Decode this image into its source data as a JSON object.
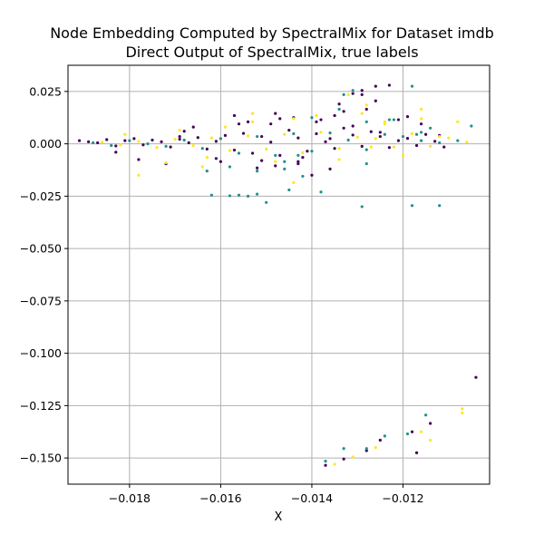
{
  "chart_data": {
    "type": "scatter",
    "title": "Node Embedding Computed by SpectralMix for Dataset imdb",
    "subtitle": "Direct Output of SpectralMix, true labels",
    "xlabel": "X",
    "ylabel": "",
    "xlim": [
      -0.01935,
      -0.0101
    ],
    "ylim": [
      -0.1625,
      0.0375
    ],
    "x_ticks": [
      -0.018,
      -0.016,
      -0.014,
      -0.012
    ],
    "x_tick_labels": [
      "−0.018",
      "−0.016",
      "−0.014",
      "−0.012"
    ],
    "y_ticks": [
      0.025,
      0.0,
      -0.025,
      -0.05,
      -0.075,
      -0.1,
      -0.125,
      -0.15
    ],
    "y_tick_labels": [
      "0.025",
      "0.000",
      "−0.025",
      "−0.050",
      "−0.075",
      "−0.100",
      "−0.125",
      "−0.150"
    ],
    "grid": true,
    "point_size": "small",
    "colors": {
      "class_0": "#440154",
      "class_1": "#21918c",
      "class_2": "#fde725",
      "grid": "#b0b0b0"
    },
    "series": [
      {
        "color": "#440154",
        "x": [
          -0.0191,
          -0.0189,
          -0.0187,
          -0.0185,
          -0.0183,
          -0.0181,
          -0.0179,
          -0.0177,
          -0.0175,
          -0.0173,
          -0.0171,
          -0.0169,
          -0.0167,
          -0.0165,
          -0.0163,
          -0.0161,
          -0.0159,
          -0.0157,
          -0.0155,
          -0.0153,
          -0.0151,
          -0.0149,
          -0.0147,
          -0.0145,
          -0.0143,
          -0.0141,
          -0.0139,
          -0.0137,
          -0.0135,
          -0.0133,
          -0.0131,
          -0.0129,
          -0.0127,
          -0.0125,
          -0.0123,
          -0.0121,
          -0.0119,
          -0.0117,
          -0.0115,
          -0.0113,
          -0.0111,
          -0.0168,
          -0.0161,
          -0.0156,
          -0.0151,
          -0.0147,
          -0.0143,
          -0.0139,
          -0.0135,
          -0.0131,
          -0.0128,
          -0.0125,
          -0.0157,
          -0.0152,
          -0.0148,
          -0.0143,
          -0.0138,
          -0.0133,
          -0.0129,
          -0.0126,
          -0.0134,
          -0.0131,
          -0.0129,
          -0.0126,
          -0.0123,
          -0.0121,
          -0.0119,
          -0.0116,
          -0.0112,
          -0.0104,
          -0.0117,
          -0.0118,
          -0.0114,
          -0.0178,
          -0.0172,
          -0.0166,
          -0.016,
          -0.0154,
          -0.0148,
          -0.0142,
          -0.0136,
          -0.0183,
          -0.0169,
          -0.0149,
          -0.0144,
          -0.014,
          -0.0137,
          -0.0133,
          -0.0128,
          -0.0125,
          -0.0136
        ],
        "y": [
          0.0015,
          0.001,
          0.0005,
          0.002,
          -0.001,
          0.0015,
          0.0025,
          -0.0005,
          0.0018,
          0.001,
          -0.0015,
          0.0022,
          0.0005,
          0.003,
          -0.0025,
          0.0012,
          0.004,
          -0.003,
          0.005,
          -0.0045,
          0.0035,
          0.0008,
          -0.0055,
          0.0065,
          0.0028,
          -0.0035,
          0.0048,
          0.001,
          -0.0022,
          0.0075,
          0.0042,
          -0.0012,
          0.0058,
          0.0035,
          -0.0018,
          0.0015,
          0.0026,
          -0.0008,
          0.0045,
          0.0012,
          -0.0015,
          0.006,
          -0.007,
          0.0095,
          -0.008,
          0.012,
          -0.0085,
          0.0105,
          0.0135,
          0.0085,
          0.0165,
          0.0055,
          0.0135,
          -0.0115,
          0.0145,
          -0.0095,
          0.0115,
          0.0155,
          0.0235,
          0.0275,
          0.019,
          0.024,
          0.0255,
          0.0205,
          0.028,
          0.0115,
          0.013,
          0.0095,
          0.004,
          -0.1115,
          -0.1475,
          -0.1375,
          -0.1335,
          -0.0075,
          -0.0095,
          0.008,
          -0.0085,
          0.0105,
          -0.0105,
          -0.0065,
          -0.012,
          -0.004,
          0.0035,
          0.0095,
          0.0125,
          -0.015,
          -0.1535,
          -0.1505,
          -0.1465,
          -0.1415,
          0.0025
        ]
      },
      {
        "color": "#21918c",
        "x": [
          -0.0188,
          -0.0184,
          -0.018,
          -0.0176,
          -0.0172,
          -0.0168,
          -0.0164,
          -0.016,
          -0.0156,
          -0.0152,
          -0.0148,
          -0.0144,
          -0.014,
          -0.0136,
          -0.0132,
          -0.0128,
          -0.0124,
          -0.012,
          -0.0116,
          -0.0112,
          -0.0162,
          -0.0158,
          -0.0156,
          -0.0154,
          -0.0152,
          -0.015,
          -0.0145,
          -0.0142,
          -0.0138,
          -0.0129,
          -0.0118,
          -0.0112,
          -0.0158,
          -0.0152,
          -0.0146,
          -0.014,
          -0.0134,
          -0.0128,
          -0.0122,
          -0.0116,
          -0.0117,
          -0.0133,
          -0.0131,
          -0.0128,
          -0.0123,
          -0.0118,
          -0.0114,
          -0.0108,
          -0.0105,
          -0.0137,
          -0.0133,
          -0.0128,
          -0.0124,
          -0.0119,
          -0.0115,
          -0.0163,
          -0.0146,
          -0.0143
        ],
        "y": [
          0.0005,
          -0.0008,
          0.0015,
          0.0,
          -0.0012,
          0.0018,
          -0.0022,
          0.0025,
          -0.0045,
          0.0035,
          -0.0055,
          0.0048,
          -0.0035,
          0.0052,
          0.0018,
          -0.0028,
          0.0045,
          0.0035,
          0.0015,
          0.0005,
          -0.0245,
          -0.0248,
          -0.0245,
          -0.025,
          -0.024,
          -0.028,
          -0.022,
          -0.0155,
          -0.023,
          -0.03,
          -0.0295,
          -0.0295,
          -0.011,
          -0.013,
          -0.0085,
          0.0125,
          0.0165,
          -0.0095,
          0.0115,
          0.0055,
          0.0045,
          0.0235,
          0.0255,
          0.0105,
          0.0115,
          0.0275,
          0.0075,
          0.0015,
          0.0085,
          -0.1515,
          -0.1455,
          -0.1455,
          -0.1395,
          -0.1385,
          -0.1295,
          -0.013,
          -0.012,
          -0.0055
        ]
      },
      {
        "color": "#fde725",
        "x": [
          -0.0186,
          -0.0182,
          -0.0178,
          -0.0174,
          -0.017,
          -0.0166,
          -0.0162,
          -0.0158,
          -0.0154,
          -0.015,
          -0.0146,
          -0.0142,
          -0.0138,
          -0.0134,
          -0.013,
          -0.0126,
          -0.0122,
          -0.0118,
          -0.0114,
          -0.011,
          -0.0106,
          -0.0178,
          -0.0172,
          -0.0169,
          -0.0164,
          -0.0159,
          -0.0153,
          -0.0148,
          -0.0144,
          -0.0139,
          -0.0134,
          -0.0129,
          -0.0124,
          -0.012,
          -0.0116,
          -0.0132,
          -0.0128,
          -0.0124,
          -0.0116,
          -0.0112,
          -0.0108,
          -0.0144,
          -0.0135,
          -0.0131,
          -0.0126,
          -0.0116,
          -0.0114,
          -0.0107,
          -0.0107,
          -0.0181,
          -0.0163,
          -0.0153,
          -0.0127
        ],
        "y": [
          0.0008,
          -0.0005,
          0.0012,
          -0.0018,
          0.0022,
          -0.0008,
          0.0028,
          -0.0032,
          0.0038,
          -0.0025,
          0.0045,
          -0.0042,
          0.0055,
          -0.0022,
          0.0032,
          0.0025,
          -0.0015,
          0.0048,
          -0.0012,
          0.0028,
          0.0008,
          -0.015,
          -0.009,
          0.0065,
          -0.011,
          0.008,
          0.0105,
          -0.0085,
          0.012,
          0.0135,
          -0.0075,
          0.0145,
          0.0095,
          -0.0055,
          0.012,
          0.0235,
          0.0185,
          0.0105,
          0.0165,
          0.0035,
          0.0105,
          -0.0185,
          -0.153,
          -0.1495,
          -0.145,
          -0.1375,
          -0.1415,
          -0.1265,
          -0.1285,
          0.0045,
          -0.0065,
          0.0145,
          -0.0015
        ]
      }
    ]
  }
}
